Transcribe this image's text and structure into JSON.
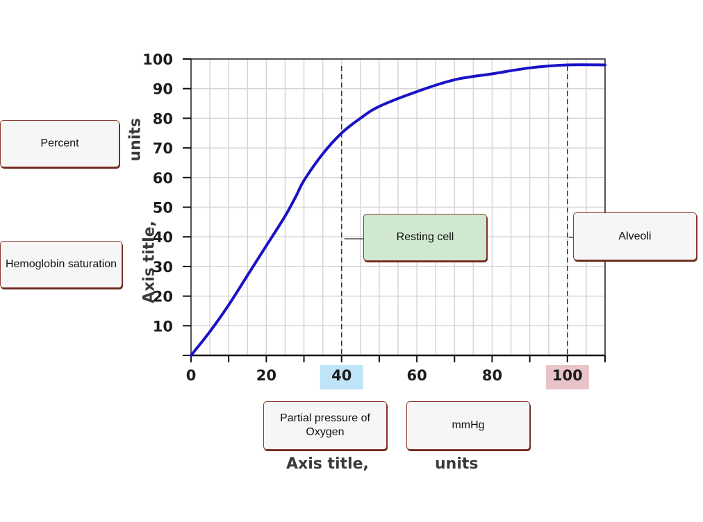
{
  "colors": {
    "curve": "#1a12c6",
    "grid": "#d6d6d6",
    "highlight_40": "#bfe3f7",
    "highlight_100": "#e8c4c8",
    "label_box_border": "#8b3a2f",
    "resting_box": "#cfe8cf"
  },
  "chart_data": {
    "type": "line",
    "x_ticks": [
      "0",
      "20",
      "40",
      "60",
      "80",
      "100"
    ],
    "y_ticks": [
      "10",
      "20",
      "30",
      "40",
      "50",
      "60",
      "70",
      "80",
      "90",
      "100"
    ],
    "xlim": [
      0,
      110
    ],
    "ylim": [
      0,
      100
    ],
    "grid": true,
    "series": [
      {
        "x": [
          0,
          5,
          10,
          15,
          20,
          25,
          28,
          30,
          35,
          40,
          45,
          50,
          60,
          70,
          80,
          90,
          100,
          110
        ],
        "y": [
          0,
          8,
          17,
          27,
          37,
          47,
          54,
          59,
          68,
          75,
          80,
          84,
          89,
          93,
          95,
          97,
          98,
          98
        ]
      }
    ],
    "reference_lines_x": [
      40,
      100
    ],
    "highlighted_ticks": [
      "40",
      "100"
    ],
    "y_axis_title": {
      "prefix": "Axis title,",
      "suffix": "units"
    },
    "x_axis_title": {
      "prefix": "Axis title,",
      "suffix": "units"
    }
  },
  "labels": {
    "percent": "Percent",
    "hemoglobin": "Hemoglobin saturation",
    "resting": "Resting cell",
    "alveoli": "Alveoli",
    "partial_pressure": "Partial pressure of Oxygen",
    "mmhg": "mmHg"
  }
}
